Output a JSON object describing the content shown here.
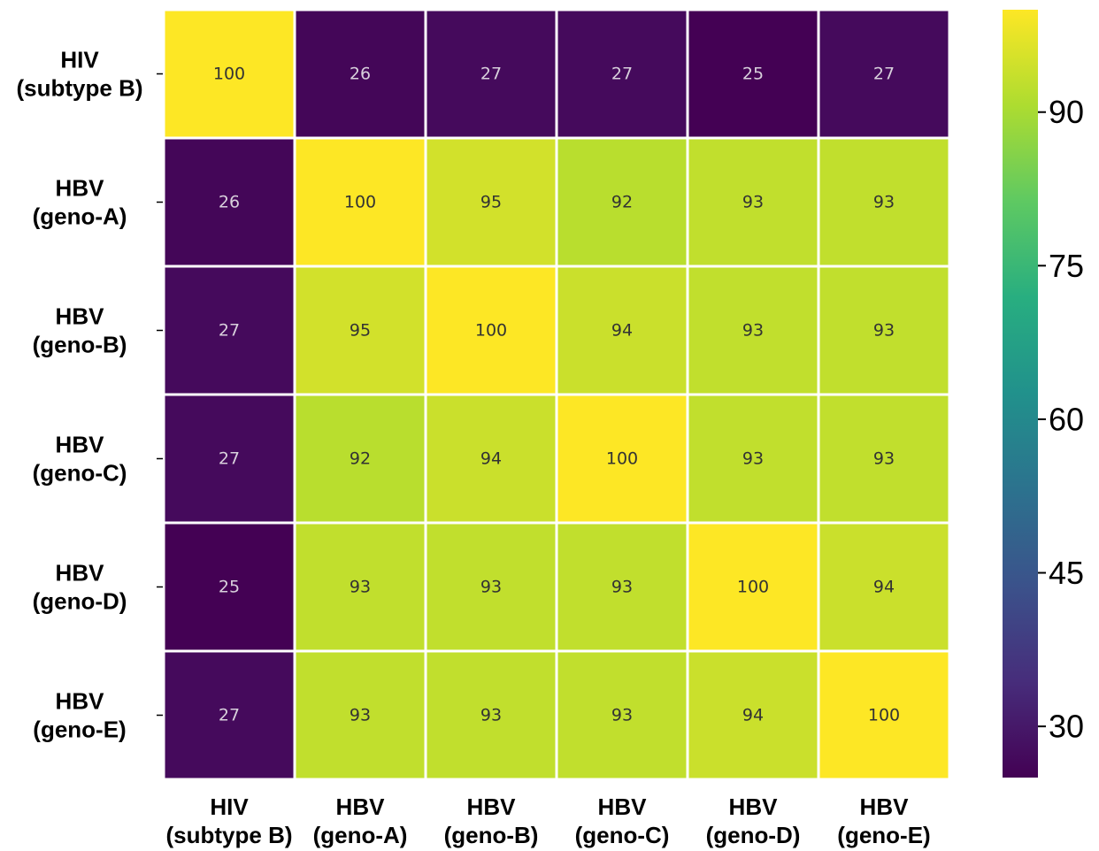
{
  "chart_data": {
    "type": "heatmap",
    "title": "",
    "xlabel": "",
    "ylabel": "",
    "row_labels": [
      [
        "HIV",
        "(subtype B)"
      ],
      [
        "HBV",
        "(geno-A)"
      ],
      [
        "HBV",
        "(geno-B)"
      ],
      [
        "HBV",
        "(geno-C)"
      ],
      [
        "HBV",
        "(geno-D)"
      ],
      [
        "HBV",
        "(geno-E)"
      ]
    ],
    "column_labels": [
      [
        "HIV",
        "(subtype B)"
      ],
      [
        "HBV",
        "(geno-A)"
      ],
      [
        "HBV",
        "(geno-B)"
      ],
      [
        "HBV",
        "(geno-C)"
      ],
      [
        "HBV",
        "(geno-D)"
      ],
      [
        "HBV",
        "(geno-E)"
      ]
    ],
    "values": [
      [
        100,
        26,
        27,
        27,
        25,
        27
      ],
      [
        26,
        100,
        95,
        92,
        93,
        93
      ],
      [
        27,
        95,
        100,
        94,
        93,
        93
      ],
      [
        27,
        92,
        94,
        100,
        93,
        93
      ],
      [
        25,
        93,
        93,
        93,
        100,
        94
      ],
      [
        27,
        93,
        93,
        93,
        94,
        100
      ]
    ],
    "colormap": "viridis",
    "colorbar": {
      "range": [
        25,
        100
      ],
      "ticks": [
        30,
        45,
        60,
        75,
        90
      ]
    },
    "cell_grid_color": "#ffffff"
  }
}
